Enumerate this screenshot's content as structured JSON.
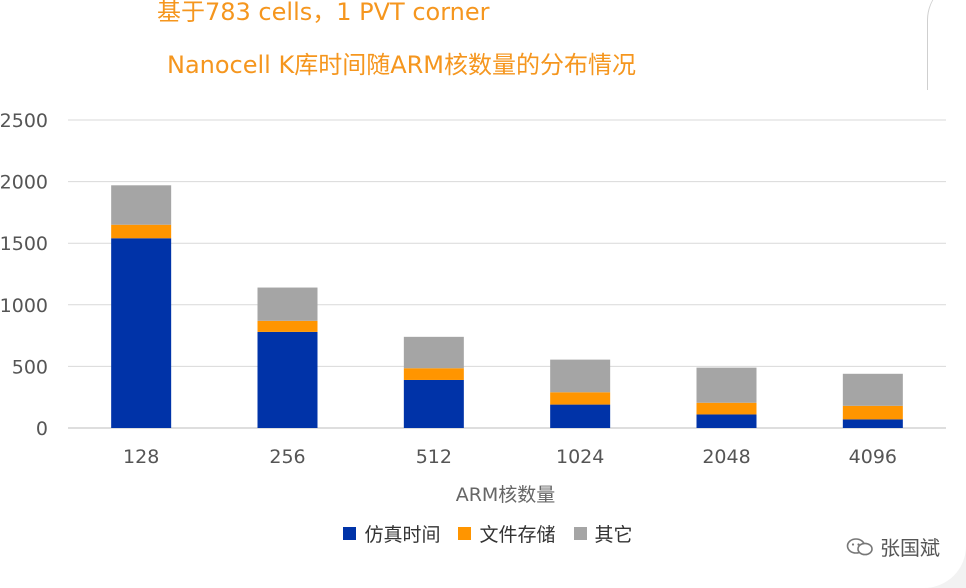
{
  "title_line1": "基于783 cells，1 PVT corner",
  "title_line2": "Nanocell K库时间随ARM核数量的分布情况",
  "watermark_text": "张国斌",
  "chart_data": {
    "type": "bar",
    "stacked": true,
    "categories": [
      "128",
      "256",
      "512",
      "1024",
      "2048",
      "4096"
    ],
    "series": [
      {
        "name": "仿真时间",
        "color": "#0033a8",
        "values": [
          1540,
          780,
          390,
          190,
          110,
          70
        ]
      },
      {
        "name": "文件存储",
        "color": "#ff9500",
        "values": [
          110,
          90,
          95,
          100,
          95,
          110
        ]
      },
      {
        "name": "其它",
        "color": "#a5a5a5",
        "values": [
          320,
          270,
          255,
          265,
          285,
          260
        ]
      }
    ],
    "xlabel": "ARM核数量",
    "ylabel": "",
    "yticks": [
      0,
      500,
      1000,
      1500,
      2000,
      2500
    ],
    "ylim": [
      0,
      2500
    ],
    "grid": true,
    "legend_position": "bottom"
  }
}
